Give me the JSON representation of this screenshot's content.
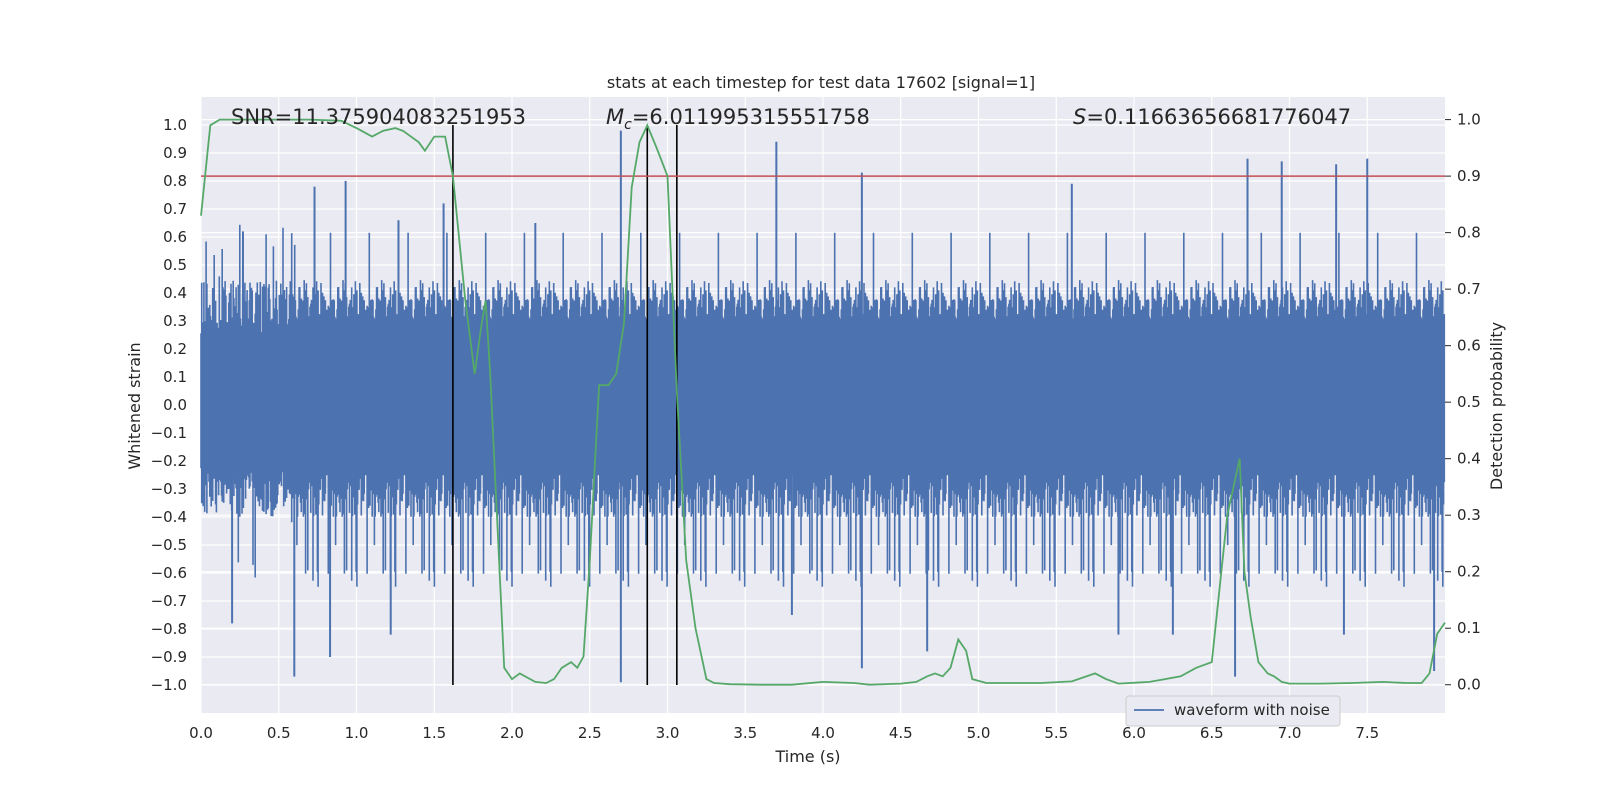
{
  "chart_data": {
    "type": "line",
    "title": "stats at each timestep for test data 17602 [signal=1]",
    "xlabel": "Time (s)",
    "ylabel_left": "Whitened strain",
    "ylabel_right": "Detection probability",
    "xlim": [
      0.0,
      8.0
    ],
    "ylim_left": [
      -1.1,
      1.1
    ],
    "ylim_right": [
      -0.05,
      1.04
    ],
    "x_ticks": [
      "0.0",
      "0.5",
      "1.0",
      "1.5",
      "2.0",
      "2.5",
      "3.0",
      "3.5",
      "4.0",
      "4.5",
      "5.0",
      "5.5",
      "6.0",
      "6.5",
      "7.0",
      "7.5"
    ],
    "y_left_ticks": [
      "1.0",
      "0.9",
      "0.8",
      "0.7",
      "0.6",
      "0.5",
      "0.4",
      "0.3",
      "0.2",
      "0.1",
      "0.0",
      "−0.1",
      "−0.2",
      "−0.3",
      "−0.4",
      "−0.5",
      "−0.6",
      "−0.7",
      "−0.8",
      "−0.9",
      "−1.0"
    ],
    "y_right_ticks": [
      "1.0",
      "0.9",
      "0.8",
      "0.7",
      "0.6",
      "0.5",
      "0.4",
      "0.3",
      "0.2",
      "0.1",
      "0.0"
    ],
    "annotations": {
      "snr": "SNR=11.375904083251953",
      "mc_symbol": "M",
      "mc_sub": "c",
      "mc_value": "=6.011995315551758",
      "s_symbol": "S",
      "s_value": "=0.11663656681776047"
    },
    "legend": {
      "label": "waveform with noise",
      "position": "lower-right"
    },
    "threshold": {
      "value": 0.9,
      "axis": "right",
      "color": "#c44e52"
    },
    "vlines_x": [
      1.62,
      2.87,
      3.06
    ],
    "waveform": {
      "name": "waveform with noise",
      "color": "#4c72b0",
      "x_range": [
        0.0,
        8.0
      ],
      "typical_envelope": [
        -0.4,
        0.45
      ],
      "peaks": [
        [
          0.27,
          0.62
        ],
        [
          0.73,
          0.78
        ],
        [
          0.93,
          0.8
        ],
        [
          1.27,
          0.66
        ],
        [
          1.56,
          0.72
        ],
        [
          2.15,
          0.65
        ],
        [
          2.7,
          0.98
        ],
        [
          3.7,
          0.94
        ],
        [
          4.25,
          0.83
        ],
        [
          5.6,
          0.79
        ],
        [
          6.73,
          0.88
        ],
        [
          6.95,
          0.87
        ],
        [
          7.3,
          0.86
        ],
        [
          7.5,
          0.88
        ]
      ],
      "troughs": [
        [
          0.2,
          -0.78
        ],
        [
          0.6,
          -0.97
        ],
        [
          0.83,
          -0.9
        ],
        [
          1.22,
          -0.82
        ],
        [
          2.7,
          -0.99
        ],
        [
          3.8,
          -0.75
        ],
        [
          4.25,
          -0.94
        ],
        [
          4.67,
          -0.88
        ],
        [
          5.9,
          -0.82
        ],
        [
          6.25,
          -0.82
        ],
        [
          6.65,
          -0.97
        ],
        [
          7.35,
          -0.82
        ],
        [
          7.93,
          -0.95
        ]
      ]
    },
    "series": [
      {
        "name": "Detection probability",
        "axis": "right",
        "color": "#55a868",
        "x": [
          0.0,
          0.06,
          0.12,
          0.3,
          0.5,
          0.7,
          0.9,
          1.0,
          1.1,
          1.17,
          1.25,
          1.3,
          1.4,
          1.44,
          1.5,
          1.57,
          1.62,
          1.7,
          1.76,
          1.8,
          1.83,
          1.86,
          1.9,
          1.95,
          2.0,
          2.05,
          2.15,
          2.22,
          2.27,
          2.32,
          2.38,
          2.42,
          2.46,
          2.5,
          2.56,
          2.62,
          2.67,
          2.72,
          2.77,
          2.82,
          2.87,
          2.93,
          3.0,
          3.06,
          3.12,
          3.18,
          3.25,
          3.3,
          3.4,
          3.6,
          3.8,
          4.0,
          4.2,
          4.3,
          4.5,
          4.6,
          4.67,
          4.72,
          4.77,
          4.82,
          4.87,
          4.92,
          4.96,
          5.05,
          5.2,
          5.4,
          5.6,
          5.75,
          5.82,
          5.9,
          6.1,
          6.2,
          6.3,
          6.4,
          6.5,
          6.6,
          6.68,
          6.71,
          6.75,
          6.8,
          6.86,
          6.9,
          6.95,
          7.0,
          7.2,
          7.4,
          7.6,
          7.75,
          7.85,
          7.9,
          7.95,
          8.0
        ],
        "y": [
          0.83,
          0.99,
          1.0,
          1.0,
          1.0,
          1.0,
          0.998,
          0.985,
          0.97,
          0.98,
          0.985,
          0.98,
          0.96,
          0.945,
          0.97,
          0.97,
          0.9,
          0.68,
          0.55,
          0.63,
          0.68,
          0.55,
          0.32,
          0.03,
          0.01,
          0.02,
          0.005,
          0.003,
          0.01,
          0.03,
          0.04,
          0.03,
          0.05,
          0.22,
          0.53,
          0.53,
          0.55,
          0.64,
          0.88,
          0.96,
          0.99,
          0.95,
          0.9,
          0.52,
          0.22,
          0.1,
          0.01,
          0.003,
          0.001,
          0.0,
          0.0,
          0.005,
          0.003,
          0.0,
          0.002,
          0.005,
          0.015,
          0.02,
          0.015,
          0.03,
          0.08,
          0.06,
          0.01,
          0.003,
          0.003,
          0.003,
          0.006,
          0.02,
          0.01,
          0.002,
          0.005,
          0.01,
          0.015,
          0.03,
          0.04,
          0.3,
          0.4,
          0.2,
          0.12,
          0.04,
          0.02,
          0.015,
          0.005,
          0.002,
          0.002,
          0.003,
          0.005,
          0.003,
          0.003,
          0.02,
          0.09,
          0.11
        ]
      }
    ]
  }
}
